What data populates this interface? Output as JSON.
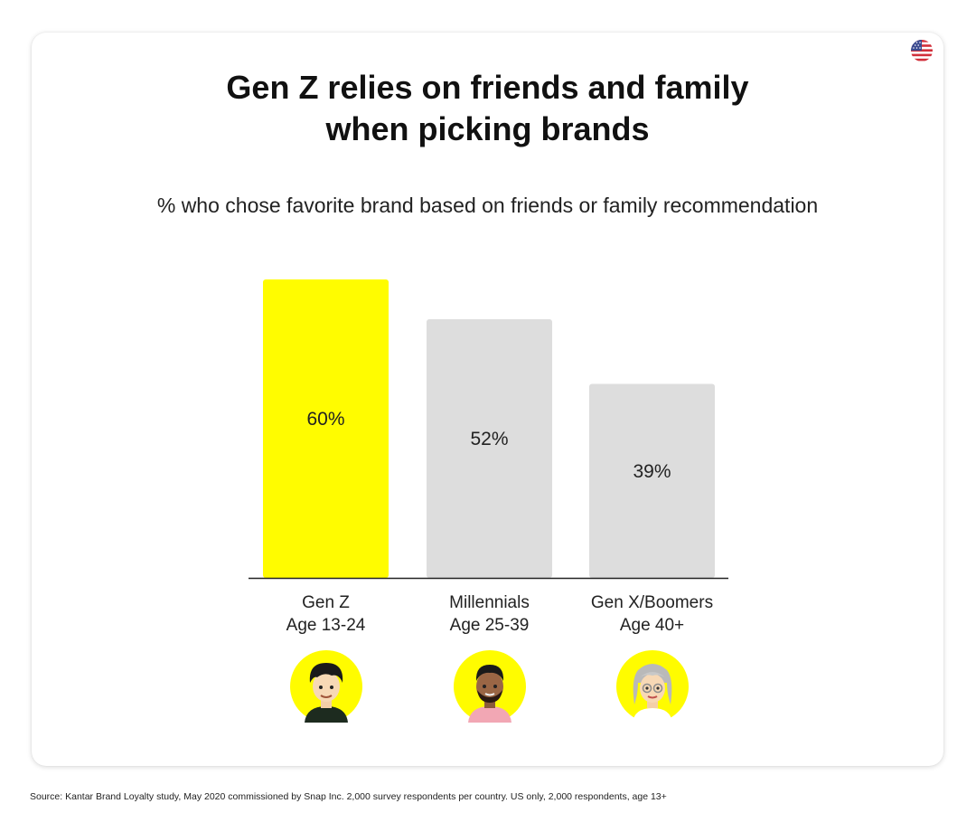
{
  "chart_data": {
    "type": "bar",
    "title_lines": [
      "Gen Z relies on friends and family",
      "when picking brands"
    ],
    "subtitle": "% who chose favorite brand based on friends or family recommendation",
    "categories": [
      {
        "line1": "Gen Z",
        "line2": "Age 13-24"
      },
      {
        "line1": "Millennials",
        "line2": "Age 25-39"
      },
      {
        "line1": "Gen X/Boomers",
        "line2": "Age 40+"
      }
    ],
    "values": [
      60,
      52,
      39
    ],
    "value_labels": [
      "60%",
      "52%",
      "39%"
    ],
    "colors": [
      "#FFFC00",
      "#DDDDDD",
      "#DDDDDD"
    ],
    "ylim": [
      0,
      100
    ],
    "grid": false,
    "legend": "none"
  },
  "avatars": [
    {
      "icon": "gen-z-avatar-icon",
      "bg": "#FFFC00"
    },
    {
      "icon": "millennial-avatar-icon",
      "bg": "#FFFC00"
    },
    {
      "icon": "gen-x-boomer-avatar-icon",
      "bg": "#FFFC00"
    }
  ],
  "flag_icon": "us-flag-icon",
  "source": "Source: Kantar Brand Loyalty study, May 2020 commissioned by Snap Inc. 2,000 survey respondents per country. US only, 2,000 respondents, age 13+"
}
